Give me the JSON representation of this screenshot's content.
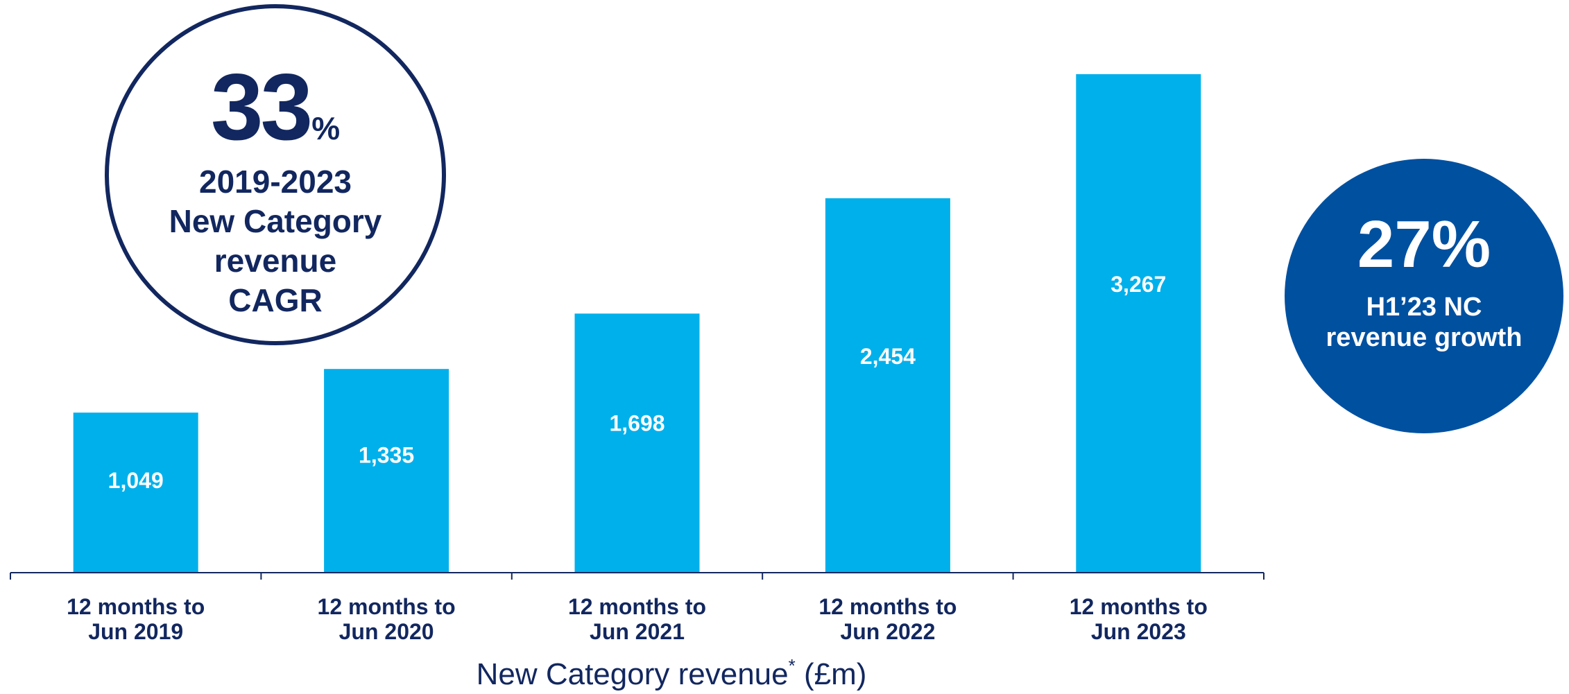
{
  "chart_data": {
    "type": "bar",
    "categories": [
      "12 months to Jun 2019",
      "12 months to Jun 2020",
      "12 months to Jun 2021",
      "12 months to Jun 2022",
      "12 months to Jun 2023"
    ],
    "category_lines": [
      [
        "12 months to",
        "Jun 2019"
      ],
      [
        "12 months to",
        "Jun 2020"
      ],
      [
        "12 months to",
        "Jun 2021"
      ],
      [
        "12 months to",
        "Jun 2022"
      ],
      [
        "12 months to",
        "Jun 2023"
      ]
    ],
    "values": [
      1049,
      1335,
      1698,
      2454,
      3267
    ],
    "data_labels": [
      "1,049",
      "1,335",
      "1,698",
      "2,454",
      "3,267"
    ],
    "xlabel": "New Category revenue",
    "xlabel_marker": "*",
    "xlabel_unit": " (£m)",
    "title": "",
    "ylabel": "",
    "ylim": [
      0,
      3267
    ],
    "grid": false,
    "legend": "none",
    "colors": {
      "bar": "#00b0eb",
      "axis": "#12275f",
      "label": "#12275f",
      "data_label": "#ffffff"
    }
  },
  "callouts": {
    "cagr": {
      "value": "33",
      "unit": "%",
      "caption_lines": [
        "2019-2023",
        "New Category",
        "revenue",
        "CAGR"
      ],
      "colors": {
        "border": "#12275f",
        "text": "#12275f"
      }
    },
    "growth": {
      "value": "27%",
      "caption_lines": [
        "H1’23 NC",
        "revenue growth"
      ],
      "colors": {
        "fill": "#0050a0",
        "text": "#ffffff"
      }
    }
  }
}
